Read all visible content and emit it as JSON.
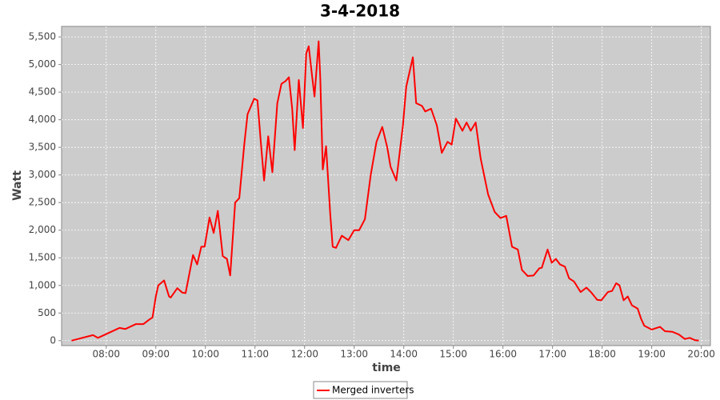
{
  "chart_data": {
    "type": "line",
    "title": "3-4-2018",
    "xlabel": "time",
    "ylabel": "Watt",
    "x": [
      "07:18",
      "07:44",
      "07:50",
      "08:16",
      "08:23",
      "08:36",
      "08:45",
      "08:52",
      "08:56",
      "09:00",
      "09:03",
      "09:10",
      "09:16",
      "09:18",
      "09:26",
      "09:32",
      "09:36",
      "09:45",
      "09:50",
      "09:55",
      "09:59",
      "10:05",
      "10:10",
      "10:15",
      "10:21",
      "10:26",
      "10:30",
      "10:36",
      "10:41",
      "10:47",
      "10:51",
      "10:59",
      "11:03",
      "11:07",
      "11:11",
      "11:16",
      "11:21",
      "11:27",
      "11:32",
      "11:37",
      "11:41",
      "11:45",
      "11:48",
      "11:53",
      "11:58",
      "12:02",
      "12:05",
      "12:09",
      "12:12",
      "12:17",
      "12:19",
      "12:22",
      "12:26",
      "12:31",
      "12:34",
      "12:38",
      "12:45",
      "12:53",
      "13:00",
      "13:06",
      "13:13",
      "13:20",
      "13:27",
      "13:34",
      "13:40",
      "13:44",
      "13:51",
      "13:59",
      "14:03",
      "14:11",
      "14:15",
      "14:22",
      "14:26",
      "14:33",
      "14:40",
      "14:46",
      "14:53",
      "14:58",
      "15:03",
      "15:11",
      "15:16",
      "15:21",
      "15:27",
      "15:33",
      "15:42",
      "15:50",
      "15:57",
      "16:04",
      "16:11",
      "16:18",
      "16:23",
      "16:30",
      "16:37",
      "16:44",
      "16:47",
      "16:54",
      "16:59",
      "17:04",
      "17:09",
      "17:15",
      "17:20",
      "17:26",
      "17:34",
      "17:41",
      "17:47",
      "17:54",
      "17:59",
      "18:07",
      "18:12",
      "18:17",
      "18:21",
      "18:26",
      "18:31",
      "18:36",
      "18:43",
      "18:47",
      "18:51",
      "19:00",
      "19:10",
      "19:16",
      "19:25",
      "19:33",
      "19:40",
      "19:46",
      "19:52",
      "19:57"
    ],
    "series": [
      {
        "name": "Merged inverters",
        "color": "#ff0000",
        "values": [
          0,
          100,
          50,
          230,
          210,
          300,
          300,
          380,
          420,
          800,
          1000,
          1090,
          800,
          780,
          950,
          870,
          860,
          1550,
          1380,
          1700,
          1700,
          2230,
          1950,
          2350,
          1530,
          1480,
          1180,
          2500,
          2580,
          3550,
          4100,
          4380,
          4350,
          3600,
          2900,
          3700,
          3050,
          4300,
          4650,
          4700,
          4770,
          4200,
          3450,
          4720,
          3850,
          5200,
          5330,
          4800,
          4420,
          5420,
          4750,
          3100,
          3520,
          2300,
          1700,
          1680,
          1900,
          1820,
          2000,
          2000,
          2200,
          3000,
          3600,
          3870,
          3500,
          3150,
          2900,
          3900,
          4600,
          5130,
          4300,
          4250,
          4150,
          4200,
          3900,
          3400,
          3600,
          3550,
          4020,
          3800,
          3950,
          3800,
          3950,
          3300,
          2650,
          2330,
          2220,
          2260,
          1700,
          1650,
          1280,
          1170,
          1180,
          1310,
          1320,
          1650,
          1410,
          1480,
          1380,
          1340,
          1130,
          1070,
          880,
          960,
          870,
          740,
          730,
          880,
          900,
          1040,
          1000,
          730,
          800,
          640,
          580,
          400,
          270,
          200,
          250,
          170,
          160,
          110,
          30,
          50,
          10,
          0
        ]
      }
    ],
    "xlim": [
      "07:06",
      "20:11"
    ],
    "xticks": [
      "08:00",
      "09:00",
      "10:00",
      "11:00",
      "12:00",
      "13:00",
      "14:00",
      "15:00",
      "16:00",
      "17:00",
      "18:00",
      "19:00",
      "20:00"
    ],
    "ylim": [
      -90,
      5690
    ],
    "yticks": [
      0,
      500,
      {
        "value": 1000,
        "label": "1,000"
      },
      {
        "value": 1500,
        "label": "1,500"
      },
      {
        "value": 2000,
        "label": "2,000"
      },
      {
        "value": 2500,
        "label": "2,500"
      },
      {
        "value": 3000,
        "label": "3,000"
      },
      {
        "value": 3500,
        "label": "3,500"
      },
      {
        "value": 4000,
        "label": "4,000"
      },
      {
        "value": 4500,
        "label": "4,500"
      },
      {
        "value": 5000,
        "label": "5,000"
      },
      {
        "value": 5500,
        "label": "5,500"
      }
    ],
    "grid": true,
    "legend": "bottom"
  }
}
